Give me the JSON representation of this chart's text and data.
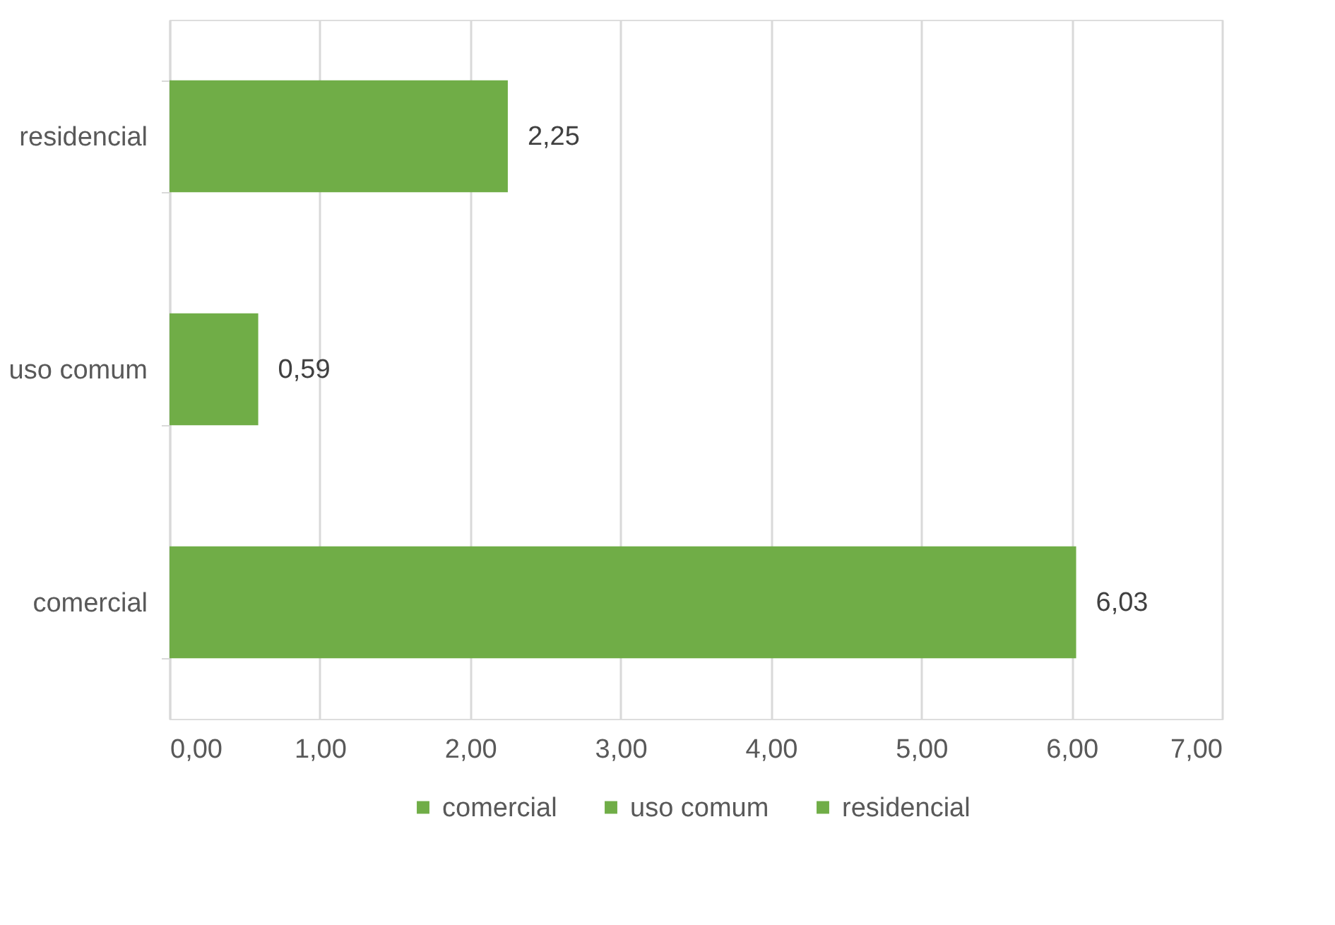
{
  "chart_data": {
    "type": "bar",
    "orientation": "horizontal",
    "categories": [
      "residencial",
      "uso comum",
      "comercial"
    ],
    "series": [
      {
        "name": "comercial",
        "color": "#70ad47",
        "values": [
          null,
          null,
          6.03
        ],
        "value_labels": [
          null,
          null,
          "6,03"
        ]
      },
      {
        "name": "uso comum",
        "color": "#70ad47",
        "values": [
          null,
          0.59,
          null
        ],
        "value_labels": [
          null,
          "0,59",
          null
        ]
      },
      {
        "name": "residencial",
        "color": "#70ad47",
        "values": [
          2.25,
          null,
          null
        ],
        "value_labels": [
          "2,25",
          null,
          null
        ]
      }
    ],
    "xlim": [
      0,
      7
    ],
    "xticks": [
      {
        "value": 0,
        "label": "0,00"
      },
      {
        "value": 1,
        "label": "1,00"
      },
      {
        "value": 2,
        "label": "2,00"
      },
      {
        "value": 3,
        "label": "3,00"
      },
      {
        "value": 4,
        "label": "4,00"
      },
      {
        "value": 5,
        "label": "5,00"
      },
      {
        "value": 6,
        "label": "6,00"
      },
      {
        "value": 7,
        "label": "7,00"
      }
    ],
    "grid": "x",
    "legend": "bottom"
  }
}
